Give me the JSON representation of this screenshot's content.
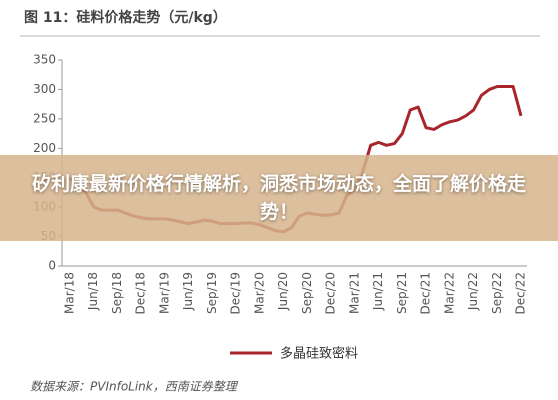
{
  "chart_data": {
    "type": "line",
    "title": "图 11：硅料价格走势（元/kg）",
    "categories": [
      "Mar/18",
      null,
      null,
      "Jun/18",
      null,
      null,
      "Sep/18",
      null,
      null,
      "Dec/18",
      null,
      null,
      "Mar/19",
      null,
      null,
      "Jun/19",
      null,
      null,
      "Sep/19",
      null,
      null,
      "Dec/19",
      null,
      null,
      "Mar/20",
      null,
      null,
      "Jun/20",
      null,
      null,
      "Sep/20",
      null,
      null,
      "Dec/20",
      null,
      null,
      "Mar/21",
      null,
      null,
      "Jun/21",
      null,
      null,
      "Sep/21",
      null,
      null,
      "Dec/21",
      null,
      null,
      "Mar/22",
      null,
      null,
      "Jun/22",
      null,
      null,
      "Sep/22",
      null,
      null,
      "Dec/22"
    ],
    "series": [
      {
        "name": "多晶硅致密料",
        "color": "#a8262b",
        "values": [
          150,
          135,
          125,
          100,
          95,
          95,
          95,
          90,
          85,
          82,
          80,
          80,
          80,
          78,
          75,
          72,
          75,
          78,
          76,
          72,
          72,
          72,
          73,
          73,
          70,
          65,
          60,
          58,
          65,
          85,
          90,
          88,
          86,
          87,
          90,
          120,
          130,
          160,
          205,
          210,
          205,
          208,
          225,
          265,
          270,
          235,
          232,
          240,
          245,
          248,
          255,
          265,
          290,
          300,
          305,
          305,
          305,
          255
        ]
      }
    ],
    "ylim": [
      0,
      350
    ],
    "yticks": [
      0,
      50,
      100,
      150,
      200,
      250,
      300,
      350
    ],
    "grid": false,
    "source": "数据来源：PVInfoLink，西南证券整理"
  },
  "banner": {
    "text": "矽利康最新价格行情解析，洞悉市场动态，全面了解价格走势！"
  }
}
